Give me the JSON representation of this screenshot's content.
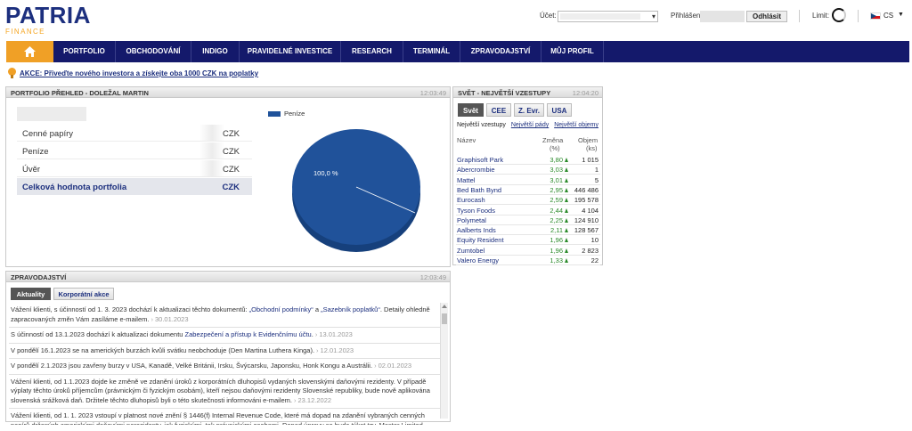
{
  "brand": {
    "name": "PATRIA",
    "sub": "FINANCE"
  },
  "header": {
    "account_label": "Účet:",
    "account_value": "",
    "logged_label": "Přihlášen",
    "logout_label": "Odhlásit",
    "limit_label": "Limit:",
    "lang_label": "CS"
  },
  "nav": {
    "items": [
      {
        "label": "PORTFOLIO"
      },
      {
        "label": "OBCHODOVÁNÍ"
      },
      {
        "label": "INDIGO"
      },
      {
        "label": "PRAVIDELNÉ INVESTICE"
      },
      {
        "label": "RESEARCH"
      },
      {
        "label": "TERMINÁL"
      },
      {
        "label": "ZPRAVODAJSTVÍ"
      },
      {
        "label": "MŮJ PROFIL"
      }
    ]
  },
  "promo": {
    "text": "AKCE: Přiveďte nového investora a získejte oba 1000 CZK na poplatky"
  },
  "portfolio": {
    "title": "PORTFOLIO PŘEHLED - DOLEŽAL MARTIN",
    "time": "12:03:49",
    "rows": [
      {
        "name": "Cenné papíry",
        "currency": "CZK"
      },
      {
        "name": "Peníze",
        "currency": "CZK"
      },
      {
        "name": "Úvěr",
        "currency": "CZK"
      },
      {
        "name": "Celková hodnota portfolia",
        "currency": "CZK"
      }
    ],
    "chart_data": {
      "type": "pie",
      "legend": [
        "Peníze"
      ],
      "legend_position": "top-left",
      "slices": [
        {
          "name": "Peníze",
          "value": 100.0,
          "label": "100,0 %",
          "color": "#20529a"
        }
      ]
    }
  },
  "movers": {
    "title": "SVĚT - NEJVĚTŠÍ VZESTUPY",
    "time": "12:04:20",
    "tabs": [
      {
        "label": "Svět"
      },
      {
        "label": "CEE"
      },
      {
        "label": "Z. Evr."
      },
      {
        "label": "USA"
      }
    ],
    "sub_selected": "Největší vzestupy",
    "sub_links": [
      {
        "label": "Největší pády"
      },
      {
        "label": "Největší objemy"
      }
    ],
    "headers": {
      "name": "Název",
      "change_1": "Změna",
      "change_2": "(%)",
      "volume_1": "Objem",
      "volume_2": "(ks)"
    },
    "rows": [
      {
        "name": "Graphisoft Park",
        "change": "3,80",
        "volume": "1 015"
      },
      {
        "name": "Abercrombie",
        "change": "3,03",
        "volume": "1"
      },
      {
        "name": "Mattel",
        "change": "3,01",
        "volume": "5"
      },
      {
        "name": "Bed Bath Bynd",
        "change": "2,95",
        "volume": "446 486"
      },
      {
        "name": "Eurocash",
        "change": "2,59",
        "volume": "195 578"
      },
      {
        "name": "Tyson Foods",
        "change": "2,44",
        "volume": "4 104"
      },
      {
        "name": "Polymetal",
        "change": "2,25",
        "volume": "124 910"
      },
      {
        "name": "Aalberts Inds",
        "change": "2,11",
        "volume": "128 567"
      },
      {
        "name": "Equity Resident",
        "change": "1,96",
        "volume": "10"
      },
      {
        "name": "Zumtobel",
        "change": "1,96",
        "volume": "2 823"
      },
      {
        "name": "Valero Energy",
        "change": "1,33",
        "volume": "22"
      }
    ]
  },
  "news": {
    "title": "ZPRAVODAJSTVÍ",
    "time": "12:03:49",
    "tabs": [
      {
        "label": "Aktuality"
      },
      {
        "label": "Korporátní akce"
      }
    ],
    "items": [
      {
        "pre": "Vážení klienti, s účinností od 1. 3. 2023 dochází k aktualizaci těchto dokumentů: ",
        "link1": "„Obchodní podmínky“",
        "mid": " a ",
        "link2": "„Sazebník poplatků“",
        "post": ". Detaily ohledně zapracovaných změn Vám zasíláme e-mailem.",
        "date": "30.01.2023"
      },
      {
        "pre": "S účinností od 13.1.2023 dochází k aktualizaci dokumentu ",
        "link1": "Zabezpečení a přístup k Evidenčnímu účtu",
        "mid": ".",
        "link2": "",
        "post": "",
        "date": "13.01.2023"
      },
      {
        "pre": "V pondělí 16.1.2023 se na amerických burzách kvůli svátku neobchoduje (Den Martina Luthera Kinga).",
        "link1": "",
        "mid": "",
        "link2": "",
        "post": "",
        "date": "12.01.2023"
      },
      {
        "pre": "V pondělí 2.1.2023 jsou zavřeny burzy v USA, Kanadě, Velké Británii, Irsku, Švýcarsku, Japonsku, Honk Kongu a Austrálii.",
        "link1": "",
        "mid": "",
        "link2": "",
        "post": "",
        "date": "02.01.2023"
      },
      {
        "pre": "Vážení klienti, od 1.1.2023 dojde ke změně ve zdanění úroků z korporátních dluhopisů vydaných slovenskými daňovými rezidenty. V případě výplaty těchto úroků příjemcům (právnickým či fyzickým osobám), kteří nejsou daňovými rezidenty Slovenské republiky, bude nově aplikována slovenská srážková daň. Držitele těchto dluhopisů byli o této skutečnosti informováni e-mailem.",
        "link1": "",
        "mid": "",
        "link2": "",
        "post": "",
        "date": "23.12.2022"
      },
      {
        "pre": "Vážení klienti, od 1. 1. 2023 vstoupí v platnost nové znění § 1446(f) Internal Revenue Code, které má dopad na zdanění vybraných cenných papírů držených americkými daňovými nerezidenty, jak fyzickými, tak právnickými osobami. Dopad úpravy se bude týkat tzv. Master Limited Partnerships",
        "link1": "",
        "mid": "",
        "link2": "",
        "post": "",
        "date": ""
      }
    ]
  },
  "colors": {
    "navy": "#14196b",
    "accent": "#f0a026",
    "pie": "#20529a",
    "up": "#2a8a2a"
  }
}
